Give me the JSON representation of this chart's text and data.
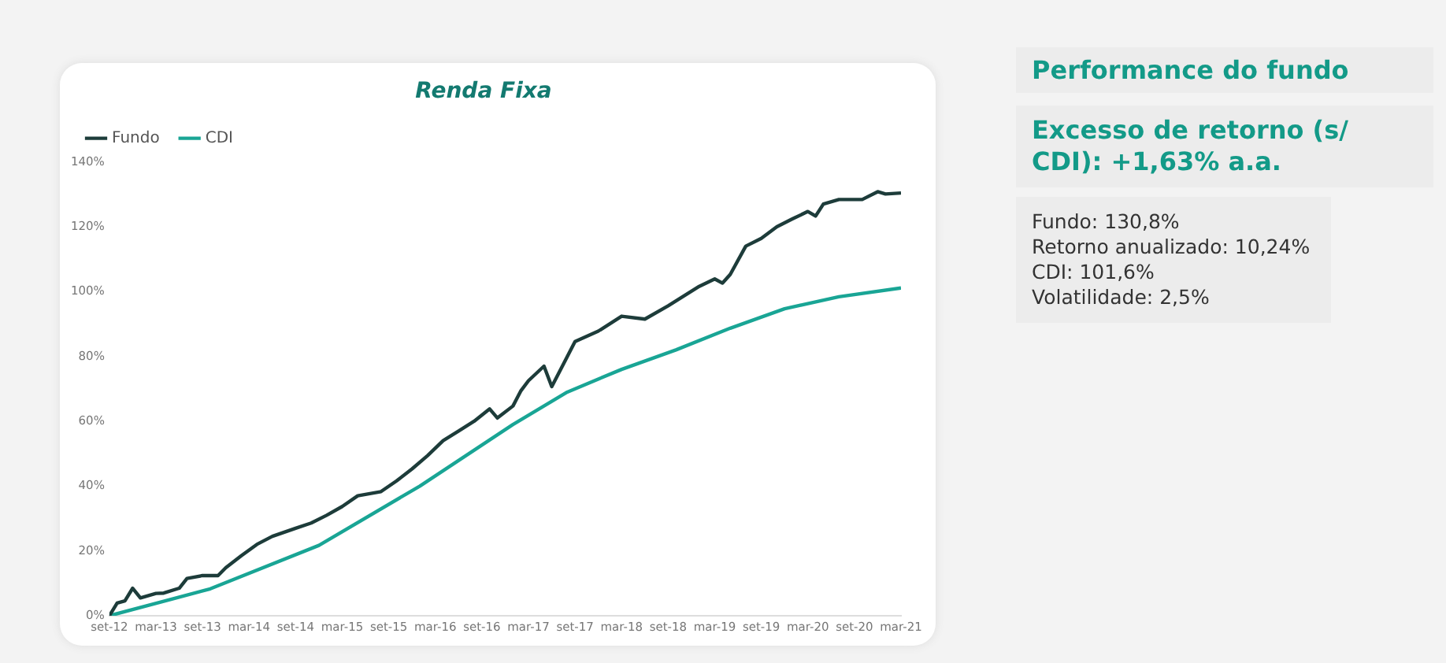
{
  "chart_data": [
    {
      "type": "line",
      "title": "Renda Fixa",
      "legend": "top left",
      "grid": false,
      "marker": "none",
      "line_style": "solid",
      "xlim": [
        "2012-09",
        "2021-03"
      ],
      "xticks": [
        {
          "value": "2012-09",
          "label": "set-12"
        },
        {
          "value": "2013-03",
          "label": "mar-13"
        },
        {
          "value": "2013-09",
          "label": "set-13"
        },
        {
          "value": "2014-03",
          "label": "mar-14"
        },
        {
          "value": "2014-09",
          "label": "set-14"
        },
        {
          "value": "2015-03",
          "label": "mar-15"
        },
        {
          "value": "2015-09",
          "label": "set-15"
        },
        {
          "value": "2016-03",
          "label": "mar-16"
        },
        {
          "value": "2016-09",
          "label": "set-16"
        },
        {
          "value": "2017-03",
          "label": "mar-17"
        },
        {
          "value": "2017-09",
          "label": "set-17"
        },
        {
          "value": "2018-03",
          "label": "mar-18"
        },
        {
          "value": "2018-09",
          "label": "set-18"
        },
        {
          "value": "2019-03",
          "label": "mar-19"
        },
        {
          "value": "2019-09",
          "label": "set-19"
        },
        {
          "value": "2020-03",
          "label": "mar-20"
        },
        {
          "value": "2020-09",
          "label": "set-20"
        },
        {
          "value": "2021-03",
          "label": "mar-21"
        }
      ],
      "ylim": [
        0,
        140
      ],
      "yticks": [
        {
          "value": 0,
          "label": "0%"
        },
        {
          "value": 20,
          "label": "20%"
        },
        {
          "value": 40,
          "label": "40%"
        },
        {
          "value": 60,
          "label": "60%"
        },
        {
          "value": 80,
          "label": "80%"
        },
        {
          "value": 100,
          "label": "100%"
        },
        {
          "value": 120,
          "label": "120%"
        },
        {
          "value": 140,
          "label": "140%"
        }
      ],
      "series": [
        {
          "name": "Fundo",
          "color": "#1d3c3a",
          "x": [
            "2012-09",
            "2012-10",
            "2012-11",
            "2012-12",
            "2013-01",
            "2013-03",
            "2013-04",
            "2013-06",
            "2013-07",
            "2013-09",
            "2013-11",
            "2013-12",
            "2014-02",
            "2014-04",
            "2014-06",
            "2014-09",
            "2014-11",
            "2015-01",
            "2015-03",
            "2015-05",
            "2015-08",
            "2015-10",
            "2015-12",
            "2016-02",
            "2016-04",
            "2016-06",
            "2016-08",
            "2016-10",
            "2016-11",
            "2017-01",
            "2017-02",
            "2017-03",
            "2017-05",
            "2017-06",
            "2017-07",
            "2017-09",
            "2017-12",
            "2018-03",
            "2018-06",
            "2018-09",
            "2019-01",
            "2019-03",
            "2019-04",
            "2019-05",
            "2019-07",
            "2019-09",
            "2019-11",
            "2020-01",
            "2020-03",
            "2020-04",
            "2020-05",
            "2020-07",
            "2020-10",
            "2020-12",
            "2021-01",
            "2021-03"
          ],
          "values": [
            0,
            3.9,
            4.6,
            8.5,
            5.5,
            6.9,
            7,
            8.5,
            11.5,
            12.4,
            12.4,
            14.8,
            18.5,
            22,
            24.5,
            27,
            28.6,
            31,
            33.7,
            37,
            38.3,
            41.6,
            45.3,
            49.4,
            54,
            57,
            60,
            63.8,
            61,
            64.7,
            69.3,
            72.5,
            77,
            70.7,
            75.3,
            84.6,
            87.8,
            92.4,
            91.5,
            95.6,
            101.6,
            103.9,
            102.6,
            105.3,
            114,
            116.4,
            120,
            122.4,
            124.7,
            123.3,
            127,
            128.4,
            128.4,
            130.8,
            130.1,
            130.4
          ]
        },
        {
          "name": "CDI",
          "color": "#19a595",
          "x": [
            "2012-09",
            "2013-10",
            "2014-12",
            "2016-01",
            "2017-01",
            "2017-08",
            "2018-03",
            "2018-10",
            "2019-05",
            "2019-12",
            "2020-07",
            "2021-03"
          ],
          "values": [
            0,
            8.3,
            21.7,
            40,
            59,
            69,
            76,
            82,
            88.7,
            94.7,
            98.4,
            101.1
          ]
        }
      ]
    },
    {
      "type": "other",
      "title": "Performance do fundo",
      "subtitle": "Excesso de retorno (s/ CDI): +1,63% a.a.",
      "annotations": [
        "Fundo: 130,8%",
        "Retorno anualizado: 10,24%",
        "CDI: 101,6%",
        "Volatilidade: 2,5%"
      ]
    }
  ]
}
